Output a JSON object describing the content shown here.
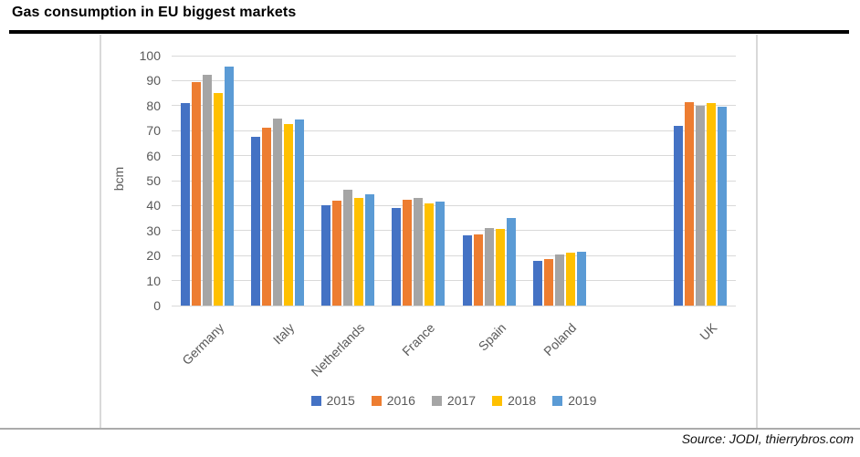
{
  "chart_data": {
    "type": "bar",
    "title": "Gas consumption in EU biggest markets",
    "xlabel": "",
    "ylabel": "bcm",
    "ylim": [
      0,
      100
    ],
    "ytick_step": 10,
    "grid": true,
    "legend_position": "bottom",
    "categories": [
      "Germany",
      "Italy",
      "Netherlands",
      "France",
      "Spain",
      "Poland",
      "UK"
    ],
    "series": [
      {
        "name": "2015",
        "color": "#4472C4",
        "values": [
          81,
          67.5,
          40,
          39,
          28,
          18,
          72
        ]
      },
      {
        "name": "2016",
        "color": "#ED7D31",
        "values": [
          89.5,
          71,
          42,
          42.5,
          28.5,
          18.5,
          81.5
        ]
      },
      {
        "name": "2017",
        "color": "#A5A5A5",
        "values": [
          92.5,
          75,
          46.5,
          43,
          31,
          20.5,
          80
        ]
      },
      {
        "name": "2018",
        "color": "#FFC000",
        "values": [
          85,
          72.5,
          43,
          41,
          30.5,
          21,
          81
        ]
      },
      {
        "name": "2019",
        "color": "#5B9BD5",
        "values": [
          95.5,
          74.5,
          44.5,
          41.5,
          35,
          21.5,
          79.5
        ]
      }
    ],
    "layout_hints": {
      "slot_count": 8,
      "category_slots": [
        0,
        1,
        2,
        3,
        4,
        5,
        7
      ],
      "category_label_angle_deg": -45
    }
  },
  "source": {
    "text": "Source: JODI, thierrybros.com"
  },
  "colors": {
    "gridline": "#D9D9D9",
    "axis_text": "#595959",
    "frame_border": "#D9D9D9",
    "bottom_rule": "#ABABAB",
    "title_rule": "#000000"
  }
}
